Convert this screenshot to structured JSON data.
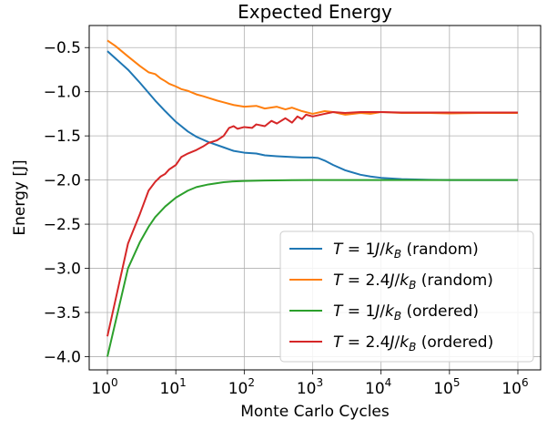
{
  "chart_data": {
    "type": "line",
    "title": "Expected Energy",
    "xlabel": "Monte Carlo Cycles",
    "ylabel": "Energy [J]",
    "xscale": "log",
    "xlim": [
      1,
      1000000
    ],
    "ylim": [
      -4.15,
      -0.25
    ],
    "grid": true,
    "legend_position": "lower-right",
    "x_ticks": [
      {
        "value": 1,
        "base": "10",
        "exp": "0"
      },
      {
        "value": 10,
        "base": "10",
        "exp": "1"
      },
      {
        "value": 100,
        "base": "10",
        "exp": "2"
      },
      {
        "value": 1000,
        "base": "10",
        "exp": "3"
      },
      {
        "value": 10000,
        "base": "10",
        "exp": "4"
      },
      {
        "value": 100000,
        "base": "10",
        "exp": "5"
      },
      {
        "value": 1000000,
        "base": "10",
        "exp": "6"
      }
    ],
    "y_ticks": [
      {
        "value": -0.5,
        "label": "−0.5"
      },
      {
        "value": -1.0,
        "label": "−1.0"
      },
      {
        "value": -1.5,
        "label": "−1.5"
      },
      {
        "value": -2.0,
        "label": "−2.0"
      },
      {
        "value": -2.5,
        "label": "−2.5"
      },
      {
        "value": -3.0,
        "label": "−3.0"
      },
      {
        "value": -3.5,
        "label": "−3.5"
      },
      {
        "value": -4.0,
        "label": "−4.0"
      }
    ],
    "series": [
      {
        "name": "T = 1J/k_B (random)",
        "legend": {
          "t": "T",
          "eq": " = 1",
          "j": "J",
          "slash": "/",
          "k": "k",
          "sub": "B",
          "suffix": " (random)"
        },
        "color": "#1f77b4",
        "x": [
          1,
          2,
          3,
          5,
          7,
          10,
          15,
          20,
          30,
          50,
          70,
          100,
          150,
          200,
          300,
          500,
          700,
          1000,
          1200,
          1500,
          2000,
          3000,
          5000,
          7000,
          10000,
          20000,
          50000,
          100000,
          300000,
          1000000
        ],
        "y": [
          -0.54,
          -0.75,
          -0.9,
          -1.1,
          -1.22,
          -1.34,
          -1.45,
          -1.51,
          -1.57,
          -1.63,
          -1.67,
          -1.69,
          -1.7,
          -1.72,
          -1.73,
          -1.74,
          -1.745,
          -1.745,
          -1.75,
          -1.78,
          -1.83,
          -1.89,
          -1.94,
          -1.96,
          -1.975,
          -1.99,
          -1.997,
          -2.0,
          -2.0,
          -2.0
        ]
      },
      {
        "name": "T = 2.4J/k_B (random)",
        "legend": {
          "t": "T",
          "eq": " = 2.4",
          "j": "J",
          "slash": "/",
          "k": "k",
          "sub": "B",
          "suffix": " (random)"
        },
        "color": "#ff7f0e",
        "x": [
          1,
          1.3,
          2,
          3,
          4,
          5,
          6,
          7,
          8,
          10,
          12,
          15,
          20,
          25,
          30,
          40,
          50,
          70,
          100,
          150,
          200,
          300,
          400,
          500,
          700,
          1000,
          1500,
          2000,
          3000,
          5000,
          7000,
          10000,
          20000,
          50000,
          100000,
          300000,
          1000000
        ],
        "y": [
          -0.42,
          -0.48,
          -0.6,
          -0.71,
          -0.78,
          -0.8,
          -0.85,
          -0.88,
          -0.91,
          -0.94,
          -0.97,
          -0.99,
          -1.03,
          -1.05,
          -1.07,
          -1.1,
          -1.12,
          -1.15,
          -1.17,
          -1.16,
          -1.19,
          -1.17,
          -1.2,
          -1.18,
          -1.22,
          -1.25,
          -1.22,
          -1.23,
          -1.26,
          -1.24,
          -1.25,
          -1.23,
          -1.24,
          -1.24,
          -1.245,
          -1.24,
          -1.24
        ]
      },
      {
        "name": "T = 1J/k_B (ordered)",
        "legend": {
          "t": "T",
          "eq": " = 1",
          "j": "J",
          "slash": "/",
          "k": "k",
          "sub": "B",
          "suffix": " (ordered)"
        },
        "color": "#2ca02c",
        "x": [
          1,
          2,
          3,
          4,
          5,
          7,
          10,
          15,
          20,
          30,
          50,
          70,
          100,
          200,
          500,
          1000,
          10000,
          100000,
          1000000
        ],
        "y": [
          -4.0,
          -3.0,
          -2.7,
          -2.53,
          -2.42,
          -2.3,
          -2.2,
          -2.12,
          -2.08,
          -2.05,
          -2.025,
          -2.015,
          -2.01,
          -2.005,
          -2.002,
          -2.0,
          -2.0,
          -2.0,
          -2.0
        ]
      },
      {
        "name": "T = 2.4J/k_B (ordered)",
        "legend": {
          "t": "T",
          "eq": " = 2.4",
          "j": "J",
          "slash": "/",
          "k": "k",
          "sub": "B",
          "suffix": " (ordered)"
        },
        "color": "#d62728",
        "x": [
          1,
          2,
          3,
          4,
          5,
          6,
          7,
          8,
          10,
          12,
          15,
          20,
          25,
          30,
          40,
          50,
          60,
          70,
          80,
          100,
          130,
          150,
          200,
          250,
          300,
          400,
          500,
          600,
          700,
          800,
          1000,
          1500,
          2000,
          3000,
          5000,
          10000,
          20000,
          50000,
          100000,
          1000000
        ],
        "y": [
          -3.77,
          -2.72,
          -2.38,
          -2.12,
          -2.02,
          -1.96,
          -1.93,
          -1.88,
          -1.83,
          -1.74,
          -1.7,
          -1.66,
          -1.62,
          -1.58,
          -1.55,
          -1.5,
          -1.41,
          -1.39,
          -1.42,
          -1.4,
          -1.41,
          -1.37,
          -1.39,
          -1.33,
          -1.36,
          -1.3,
          -1.35,
          -1.28,
          -1.31,
          -1.26,
          -1.28,
          -1.25,
          -1.23,
          -1.24,
          -1.23,
          -1.23,
          -1.235,
          -1.235,
          -1.235,
          -1.235
        ]
      }
    ]
  }
}
